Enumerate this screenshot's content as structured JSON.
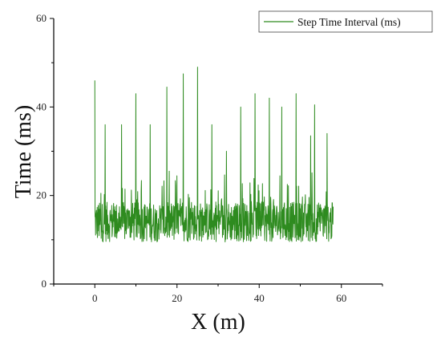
{
  "chart_data": {
    "type": "line",
    "xlabel": "X (m)",
    "ylabel": "Time (ms)",
    "xlim": [
      -10,
      70
    ],
    "ylim": [
      0,
      60
    ],
    "x_ticks": [
      0,
      20,
      40,
      60
    ],
    "y_ticks": [
      0,
      20,
      40,
      60
    ],
    "x_tick_labels": [
      "0",
      "20",
      "40",
      "60"
    ],
    "y_tick_labels": [
      "0",
      "20",
      "40",
      "60"
    ],
    "legend_position": "top-right",
    "series": [
      {
        "name": "Step Time Interval (ms)",
        "color": "#2e8b1f",
        "x_range": [
          0,
          58
        ],
        "baseline_ms": 14,
        "noise_range_ms": [
          8.5,
          26
        ],
        "spikes": [
          {
            "x": 0.0,
            "y": 46
          },
          {
            "x": 2.5,
            "y": 36
          },
          {
            "x": 6.5,
            "y": 36
          },
          {
            "x": 10.0,
            "y": 43
          },
          {
            "x": 13.5,
            "y": 36
          },
          {
            "x": 17.5,
            "y": 44.5
          },
          {
            "x": 21.5,
            "y": 47.5
          },
          {
            "x": 25.0,
            "y": 49
          },
          {
            "x": 28.5,
            "y": 36
          },
          {
            "x": 32.0,
            "y": 30
          },
          {
            "x": 35.5,
            "y": 40
          },
          {
            "x": 39.0,
            "y": 43
          },
          {
            "x": 42.5,
            "y": 42
          },
          {
            "x": 45.5,
            "y": 40
          },
          {
            "x": 49.0,
            "y": 43
          },
          {
            "x": 52.5,
            "y": 33.5
          },
          {
            "x": 53.5,
            "y": 40.5
          },
          {
            "x": 56.5,
            "y": 34
          }
        ]
      }
    ]
  }
}
